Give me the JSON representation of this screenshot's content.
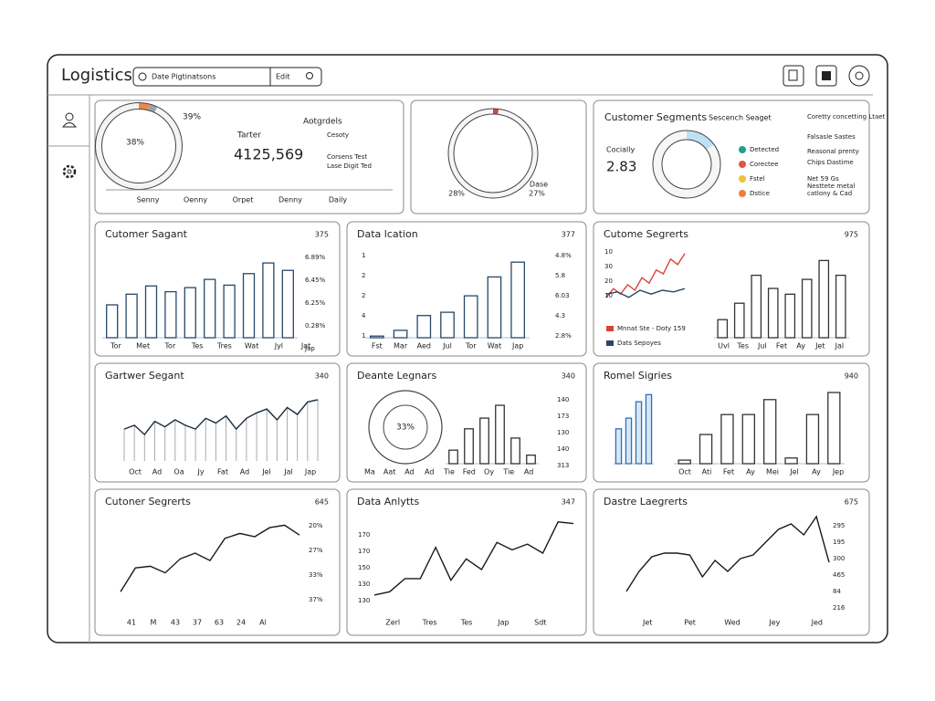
{
  "header": {
    "title": "Logistics",
    "search": "Date Pigtinatsons",
    "button": "Edit"
  },
  "panels": [
    {
      "charts": [
        {
          "type": "pie",
          "values": [
            4,
            3,
            93
          ],
          "colors": [
            "#f0874a",
            "#9aa3ad",
            "#f4f4f4"
          ]
        }
      ],
      "notes": [
        "39%",
        "38%",
        "Tarter",
        "4125,569",
        "Aotgrdels",
        "Cesoty",
        "Corsens Test",
        "Lase Digit Ted"
      ],
      "x_labels": [
        "Senny",
        "Oenny",
        "Orpet",
        "Denny",
        "Daily"
      ]
    },
    {
      "charts": [
        {
          "type": "pie",
          "values": [
            2,
            98
          ],
          "colors": [
            "#d9433a",
            "#f6f6f6"
          ]
        }
      ],
      "notes": [
        "28%",
        "Dase",
        "27%"
      ]
    },
    {
      "title": "Customer Segments",
      "charts": [
        {
          "type": "pie",
          "values": [
            15,
            85
          ],
          "colors": [
            "#bfe0f5",
            "#f6f6f6"
          ]
        }
      ],
      "notes": [
        "Sescench Seaget",
        "Cocially",
        "2.83",
        "Coretty concetting Ltaet",
        "Falsasle Sastes",
        "Reasonal prenty",
        "Chips Dastime",
        "Net 59 Gs",
        "Nesttete metal",
        "catlony & Cad"
      ],
      "legend": [
        {
          "name": "Detected",
          "color": "#1f9e8f"
        },
        {
          "name": "Corectee",
          "color": "#e0553f"
        },
        {
          "name": "Fstel",
          "color": "#efc23a"
        },
        {
          "name": "Dstice",
          "color": "#ef7d3a"
        }
      ]
    },
    {
      "title": "Cutomer Sagant",
      "badge": "375",
      "charts": [
        {
          "type": "bar",
          "values": [
            40,
            53,
            63,
            56,
            61,
            71,
            64,
            78,
            91,
            82
          ],
          "color": "#27476b",
          "ylim": [
            0,
            100
          ]
        }
      ],
      "x_labels": [
        "Tor",
        "Met",
        "Tor",
        "Tes",
        "Tres",
        "Wat",
        "Jyl",
        "Jat"
      ],
      "side_labels": [
        "6.89%",
        "6.45%",
        "6.25%",
        "0.28%",
        "Jap"
      ]
    },
    {
      "title": "Data lcation",
      "badge": "377",
      "charts": [
        {
          "type": "bar",
          "values": [
            2,
            9,
            27,
            31,
            51,
            74,
            92
          ],
          "color": "#27476b",
          "ylim": [
            0,
            100
          ]
        }
      ],
      "x_labels": [
        "Fst",
        "Mar",
        "Aed",
        "Jul",
        "Tor",
        "Wat",
        "Jap"
      ],
      "left_labels": [
        "1",
        "2",
        "2",
        "4",
        "1"
      ],
      "side_labels": [
        "4.8%",
        "5.8",
        "6.03",
        "4.3",
        "2.8%"
      ]
    },
    {
      "title": "Cutome Segrerts",
      "badge": "975",
      "charts": [
        {
          "type": "line",
          "ylim": [
            0,
            100
          ],
          "series": [
            {
              "name": "Mnnat Ste - Doty 159",
              "color": "#d9433a",
              "values": [
                7,
                23,
                13,
                30,
                20,
                43,
                33,
                57,
                50,
                77,
                67,
                87
              ]
            },
            {
              "name": "Dats Sepoyes",
              "color": "#27476b",
              "values": [
                13,
                17,
                7,
                20,
                13,
                20,
                17,
                23
              ]
            }
          ]
        },
        {
          "type": "bar",
          "values": [
            22,
            42,
            76,
            60,
            53,
            71,
            94,
            76
          ],
          "color": "#333333",
          "ylim": [
            0,
            100
          ]
        }
      ],
      "left_labels": [
        "10",
        "30",
        "20",
        "10"
      ],
      "x_labels": [
        "Uvl",
        "Tes",
        "Jul",
        "Fet",
        "Ay",
        "Jet",
        "Jal"
      ]
    },
    {
      "title": "Gartwer Segant",
      "badge": "340",
      "charts": [
        {
          "type": "line",
          "drops": true,
          "color": "#1a2a3a",
          "ylim": [
            0,
            100
          ],
          "values": [
            41,
            46,
            34,
            51,
            44,
            53,
            46,
            41,
            55,
            49,
            58,
            41,
            55,
            62,
            67,
            53,
            69,
            60,
            76,
            79
          ]
        }
      ],
      "x_labels": [
        "Oct",
        "Ad",
        "Oa",
        "Jy",
        "Fat",
        "Ad",
        "Jel",
        "Jal",
        "Jap"
      ]
    },
    {
      "title": "Deante Legnars",
      "badge": "340",
      "charts": [
        {
          "type": "bar",
          "values": [
            19,
            49,
            64,
            82,
            36,
            12
          ],
          "color": "#333333",
          "ylim": [
            0,
            100
          ]
        }
      ],
      "notes": [
        "33%"
      ],
      "x_labels": [
        "Ma",
        "Aat",
        "Ad",
        "Ad",
        "Tie",
        "Fed",
        "Oy",
        "Tie",
        "Ad"
      ],
      "side_labels": [
        "140",
        "173",
        "130",
        "140",
        "313"
      ]
    },
    {
      "title": "Romel Sigries",
      "badge": "940",
      "charts": [
        {
          "type": "bar",
          "values": [
            49,
            64,
            87,
            97
          ],
          "color": "#2f6fb8",
          "fill": "#d6e7f7",
          "ylim": [
            0,
            100
          ]
        },
        {
          "type": "bar",
          "values": [
            5,
            41,
            69,
            69,
            90,
            8,
            69,
            100
          ],
          "color": "#333333",
          "ylim": [
            0,
            100
          ]
        }
      ],
      "x_labels": [
        "Oct",
        "Ati",
        "Fet",
        "Ay",
        "Mei",
        "Jel",
        "Ay",
        "Jep"
      ]
    },
    {
      "title": "Cutoner Segrerts",
      "badge": "645",
      "charts": [
        {
          "type": "line",
          "color": "#1a1a1a",
          "ylim": [
            0,
            100
          ],
          "values": [
            13,
            42,
            44,
            36,
            53,
            60,
            51,
            78,
            84,
            80,
            91,
            94,
            82
          ]
        }
      ],
      "x_labels": [
        "41",
        "M",
        "43",
        "37",
        "63",
        "24",
        "Al"
      ],
      "side_labels": [
        "20%",
        "27%",
        "33%",
        "37%"
      ]
    },
    {
      "title": "Data Anlytts",
      "badge": "347",
      "charts": [
        {
          "type": "line",
          "color": "#1a1a1a",
          "ylim": [
            0,
            100
          ],
          "values": [
            9,
            13,
            29,
            29,
            67,
            27,
            53,
            40,
            73,
            64,
            71,
            60,
            98,
            96
          ]
        }
      ],
      "x_labels": [
        "Zerl",
        "Tres",
        "Tes",
        "Jap",
        "Sdt"
      ],
      "left_labels": [
        "170",
        "170",
        "150",
        "130",
        "130"
      ]
    },
    {
      "title": "Dastre Laegrerts",
      "badge": "675",
      "charts": [
        {
          "type": "line",
          "color": "#1a1a1a",
          "ylim": [
            0,
            100
          ],
          "values": [
            12,
            34,
            50,
            54,
            54,
            52,
            28,
            46,
            34,
            48,
            52,
            66,
            80,
            86,
            74,
            94,
            44
          ]
        }
      ],
      "x_labels": [
        "Jet",
        "Pet",
        "Wed",
        "Jey",
        "Jed"
      ],
      "side_labels": [
        "295",
        "195",
        "300",
        "465",
        "84",
        "216"
      ]
    }
  ]
}
